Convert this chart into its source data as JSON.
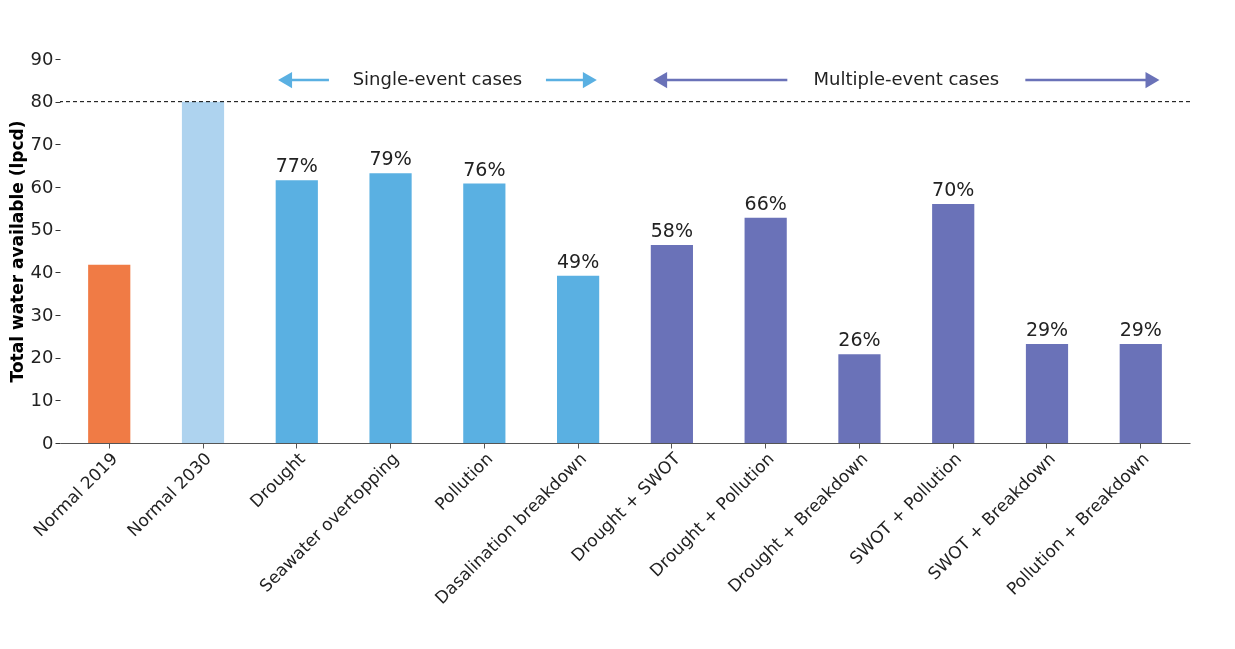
{
  "chart_data": {
    "type": "bar",
    "ylabel": "Total water available (lpcd)",
    "categories": [
      "Normal 2019",
      "Normal 2030",
      "Drought",
      "Seawater overtopping",
      "Pollution",
      "Dasalination breakdown",
      "Drought + SWOT",
      "Drought + Pollution",
      "Drought + Breakdown",
      "SWOT + Pollution",
      "SWOT + Breakdown",
      "Pollution + Breakdown"
    ],
    "values": [
      41.8,
      80,
      61.6,
      63.2,
      60.8,
      39.2,
      46.4,
      52.8,
      20.8,
      56,
      23.2,
      23.2
    ],
    "colors": [
      "#f07b45",
      "#aed3ef",
      "#5ab0e2",
      "#5ab0e2",
      "#5ab0e2",
      "#5ab0e2",
      "#6a72b8",
      "#6a72b8",
      "#6a72b8",
      "#6a72b8",
      "#6a72b8",
      "#6a72b8"
    ],
    "ylim": [
      0,
      90
    ],
    "yticks": [
      0,
      10,
      20,
      30,
      40,
      50,
      60,
      70,
      80,
      90
    ],
    "grid": false,
    "ref_lines": [
      {
        "axis": "y",
        "value": 80,
        "color": "#000000",
        "line_style": "dashed"
      }
    ],
    "annotations": [
      "Single-event cases",
      "Multiple-event cases",
      {
        "text": "77%",
        "x": "Drought",
        "y": 61.6
      },
      {
        "text": "79%",
        "x": "Seawater overtopping",
        "y": 63.2
      },
      {
        "text": "76%",
        "x": "Pollution",
        "y": 60.8
      },
      {
        "text": "49%",
        "x": "Dasalination breakdown",
        "y": 39.2
      },
      {
        "text": "58%",
        "x": "Drought + SWOT",
        "y": 46.4
      },
      {
        "text": "66%",
        "x": "Drought + Pollution",
        "y": 52.8
      },
      {
        "text": "26%",
        "x": "Drought + Breakdown",
        "y": 20.8
      },
      {
        "text": "70%",
        "x": "SWOT + Pollution",
        "y": 56
      },
      {
        "text": "29%",
        "x": "SWOT + Breakdown",
        "y": 23.2
      },
      {
        "text": "29%",
        "x": "Pollution + Breakdown",
        "y": 23.2
      }
    ]
  }
}
